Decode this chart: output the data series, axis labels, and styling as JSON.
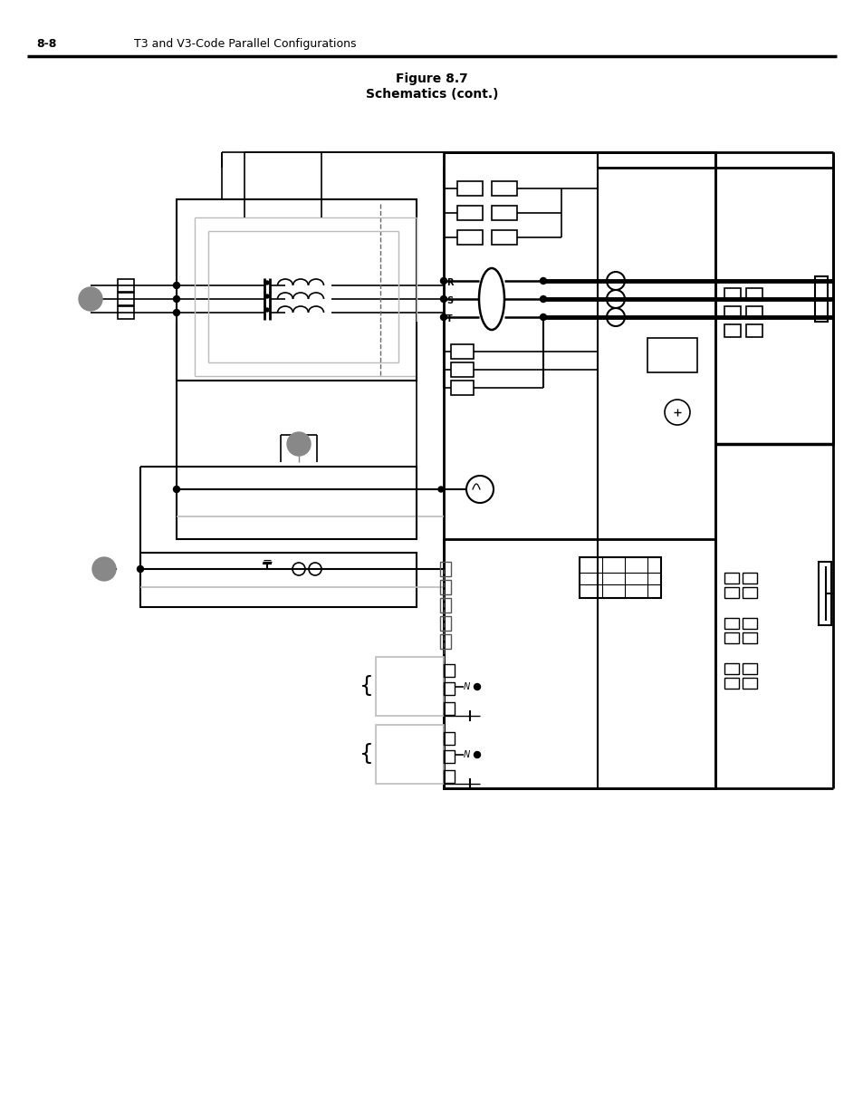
{
  "title_line1": "Figure 8.7",
  "title_line2": "Schematics (cont.)",
  "header_left": "8-8",
  "header_right": "T3 and V3-Code Parallel Configurations",
  "bg_color": "#ffffff",
  "line_color": "#000000",
  "gray_color": "#888888",
  "med_gray": "#999999",
  "light_gray": "#bbbbbb"
}
